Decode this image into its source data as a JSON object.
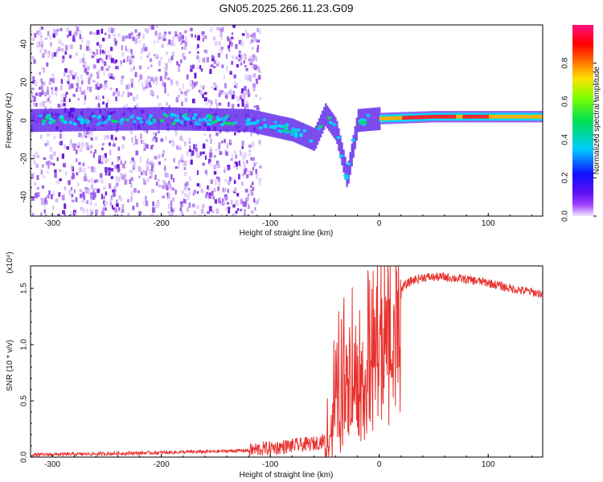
{
  "figure": {
    "title": "GN05.2025.266.11.23.G09"
  },
  "chart_data": [
    {
      "type": "heatmap",
      "title": "GN05.2025.266.11.23.G09",
      "xlabel": "Height of straight line (km)",
      "ylabel": "Frequency (Hz)",
      "xlim": [
        -320,
        150
      ],
      "ylim": [
        -50,
        50
      ],
      "xticks": [
        "-300",
        "-200",
        "-100",
        "0",
        "100"
      ],
      "yticks": [
        "-40",
        "-20",
        "0",
        "20",
        "40"
      ],
      "colorbar": {
        "label": "Normalized spectral amplitude",
        "range": [
          0,
          1
        ],
        "ticks": [
          "0.0",
          "0.2",
          "0.4",
          "0.6",
          "0.8"
        ]
      },
      "ridge": {
        "description_points_km_hz": [
          [
            -320,
            0
          ],
          [
            -200,
            1
          ],
          [
            -120,
            0
          ],
          [
            -80,
            -5
          ],
          [
            -60,
            -10
          ],
          [
            -50,
            3
          ],
          [
            -40,
            -5
          ],
          [
            -30,
            -30
          ],
          [
            -20,
            0
          ],
          [
            0,
            1
          ],
          [
            50,
            2
          ],
          [
            100,
            2
          ],
          [
            150,
            2
          ]
        ]
      }
    },
    {
      "type": "line",
      "xlabel": "Height of straight line (km)",
      "ylabel": "SNR (10 * v/v)",
      "y_multiplier": "(x10⁴)",
      "xlim": [
        -320,
        150
      ],
      "ylim": [
        0,
        1.7
      ],
      "xticks": [
        "-300",
        "-200",
        "-100",
        "0",
        "100"
      ],
      "yticks": [
        "0.0",
        "0.5",
        "1.0",
        "1.5"
      ],
      "series": [
        {
          "name": "SNR",
          "color": "#e8322e",
          "trend_x": [
            -320,
            -250,
            -200,
            -150,
            -120,
            -100,
            -80,
            -60,
            -50,
            -40,
            -35,
            -30,
            -25,
            -20,
            -15,
            -10,
            -5,
            0,
            5,
            10,
            15,
            20,
            30,
            40,
            60,
            80,
            100,
            120,
            150
          ],
          "trend_y": [
            0.02,
            0.03,
            0.04,
            0.05,
            0.06,
            0.08,
            0.1,
            0.12,
            0.15,
            0.5,
            0.75,
            0.85,
            0.95,
            0.9,
            0.75,
            1.0,
            1.05,
            1.15,
            1.25,
            1.35,
            1.45,
            1.5,
            1.57,
            1.6,
            1.6,
            1.58,
            1.55,
            1.5,
            1.45
          ]
        }
      ]
    }
  ]
}
